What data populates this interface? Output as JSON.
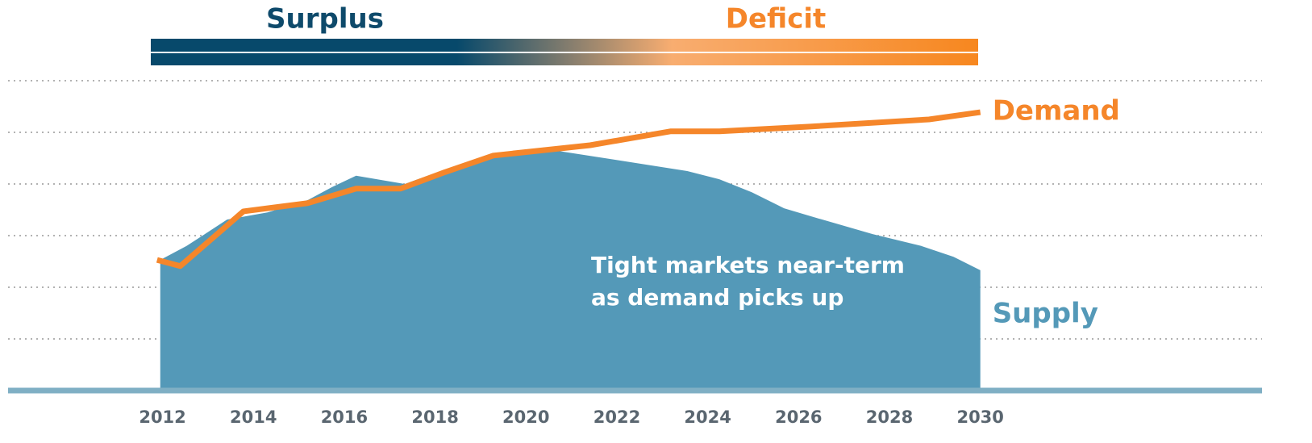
{
  "chart_data": {
    "type": "area_line",
    "surplus_label": "Surplus",
    "deficit_label": "Deficit",
    "annotation": [
      "Tight markets near-term",
      "as demand picks up"
    ],
    "series": [
      {
        "name": "Supply",
        "type": "area",
        "color": "#5499b8",
        "x": [
          2011.95,
          2012.53,
          2013.42,
          2014.31,
          2015.2,
          2015.73,
          2016.26,
          2017.33,
          2018.22,
          2019.1,
          2020.7,
          2021.95,
          2023.55,
          2024.26,
          2024.97,
          2025.68,
          2026.21,
          2027.63,
          2028.7,
          2029.41,
          2030
        ],
        "values": [
          2.53,
          2.8,
          3.31,
          3.45,
          3.69,
          3.94,
          4.16,
          4.0,
          4.28,
          4.52,
          4.64,
          4.47,
          4.25,
          4.09,
          3.84,
          3.53,
          3.39,
          3.03,
          2.8,
          2.59,
          2.33
        ]
      },
      {
        "name": "Demand",
        "type": "line",
        "color": "#f5862a",
        "x": [
          2011.88,
          2012.39,
          2013.78,
          2015.2,
          2016.26,
          2017.24,
          2018.22,
          2019.28,
          2021.41,
          2023.19,
          2024.26,
          2026.21,
          2028.87,
          2030
        ],
        "values": [
          2.53,
          2.41,
          3.47,
          3.63,
          3.91,
          3.91,
          4.23,
          4.55,
          4.75,
          5.02,
          5.02,
          5.11,
          5.25,
          5.39
        ]
      }
    ],
    "xlim": [
      2008.6,
      2036.2
    ],
    "xticks": [
      2012,
      2014,
      2016,
      2018,
      2020,
      2022,
      2024,
      2026,
      2028,
      2030
    ],
    "ylim": [
      0,
      6
    ],
    "gridlines": [
      1,
      2,
      3,
      4,
      5,
      6
    ],
    "grid": true
  }
}
